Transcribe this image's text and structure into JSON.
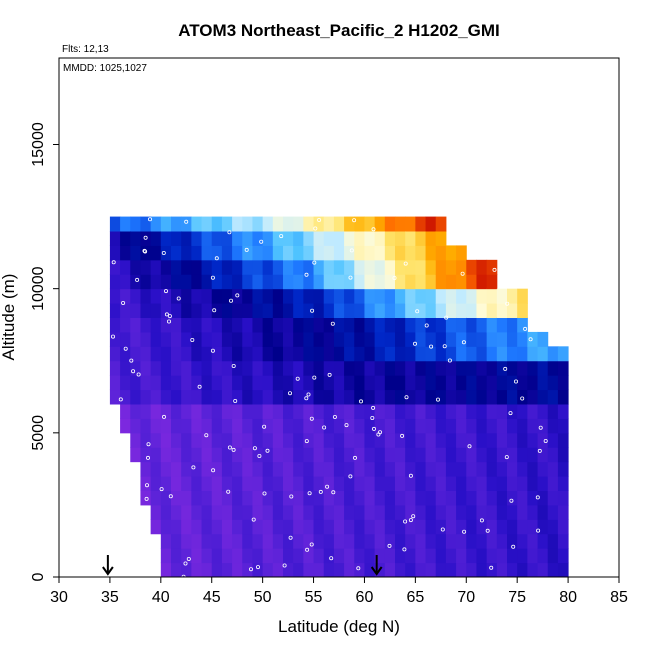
{
  "chart_data": {
    "type": "heatmap",
    "title": "ATOM3 Northeast_Pacific_2 H1202_GMI",
    "annotations": [
      "Flts: 12,13",
      "MMDD: 1025,1027"
    ],
    "xlabel": "Latitude (deg N)",
    "ylabel": "Altitude (m)",
    "xlim": [
      30,
      85
    ],
    "ylim": [
      0,
      18000
    ],
    "xticks": [
      "30",
      "35",
      "40",
      "45",
      "50",
      "55",
      "60",
      "65",
      "70",
      "75",
      "80",
      "85"
    ],
    "yticks": [
      "0",
      "5000",
      "10000",
      "15000"
    ],
    "grid": false,
    "legend": "none",
    "colormap": [
      "#8a2be2",
      "#5a22d8",
      "#2a10c8",
      "#00008b",
      "#0028c8",
      "#1e78ff",
      "#4fc3ff",
      "#bfeaff",
      "#fffbd6",
      "#ffe36a",
      "#ffb000",
      "#ff6a00",
      "#d11a00",
      "#9a0000"
    ],
    "markers": {
      "arrow_latitudes": [
        34.8,
        61.2
      ],
      "point_color": "#ffffff"
    },
    "data": {
      "lat_start": 35,
      "lat_step": 1,
      "alt_start": 0,
      "alt_step": 500,
      "profile_extent": [
        {
          "lat": 35,
          "min_alt": 6000,
          "max_alt": 12500
        },
        {
          "lat": 36,
          "min_alt": 5000,
          "max_alt": 12500
        },
        {
          "lat": 37,
          "min_alt": 4000,
          "max_alt": 12500
        },
        {
          "lat": 38,
          "min_alt": 2500,
          "max_alt": 12500
        },
        {
          "lat": 39,
          "min_alt": 1500,
          "max_alt": 12500
        },
        {
          "lat": 40,
          "min_alt": 0,
          "max_alt": 12500
        },
        {
          "lat": 66,
          "min_alt": 0,
          "max_alt": 12500
        },
        {
          "lat": 68,
          "min_alt": 0,
          "max_alt": 11500
        },
        {
          "lat": 70,
          "min_alt": 0,
          "max_alt": 11000
        },
        {
          "lat": 73,
          "min_alt": 0,
          "max_alt": 10000
        },
        {
          "lat": 76,
          "min_alt": 0,
          "max_alt": 8500
        },
        {
          "lat": 78,
          "min_alt": 0,
          "max_alt": 8000
        },
        {
          "lat": 80,
          "min_alt": 0,
          "max_alt": 7500
        }
      ],
      "bands": [
        {
          "alt_range": [
            12000,
            12500
          ],
          "lat_range": [
            35,
            66
          ],
          "values": [
            0.35,
            0.55,
            0.9
          ]
        },
        {
          "alt_range": [
            11000,
            12000
          ],
          "lat_range": [
            35,
            68
          ],
          "values": [
            0.2,
            0.45,
            0.8
          ]
        },
        {
          "alt_range": [
            10000,
            11000
          ],
          "lat_range": [
            35,
            73
          ],
          "values": [
            0.15,
            0.4,
            0.95
          ]
        },
        {
          "alt_range": [
            9000,
            10000
          ],
          "lat_range": [
            35,
            76
          ],
          "values": [
            0.12,
            0.3,
            0.7
          ]
        },
        {
          "alt_range": [
            7500,
            9000
          ],
          "lat_range": [
            35,
            80
          ],
          "values": [
            0.1,
            0.25,
            0.45
          ]
        },
        {
          "alt_range": [
            6000,
            7500
          ],
          "lat_range": [
            35,
            80
          ],
          "values": [
            0.1,
            0.2,
            0.25
          ]
        },
        {
          "alt_range": [
            0,
            6000
          ],
          "lat_range": [
            35,
            80
          ],
          "values": [
            0.05,
            0.1,
            0.15
          ]
        }
      ]
    }
  }
}
